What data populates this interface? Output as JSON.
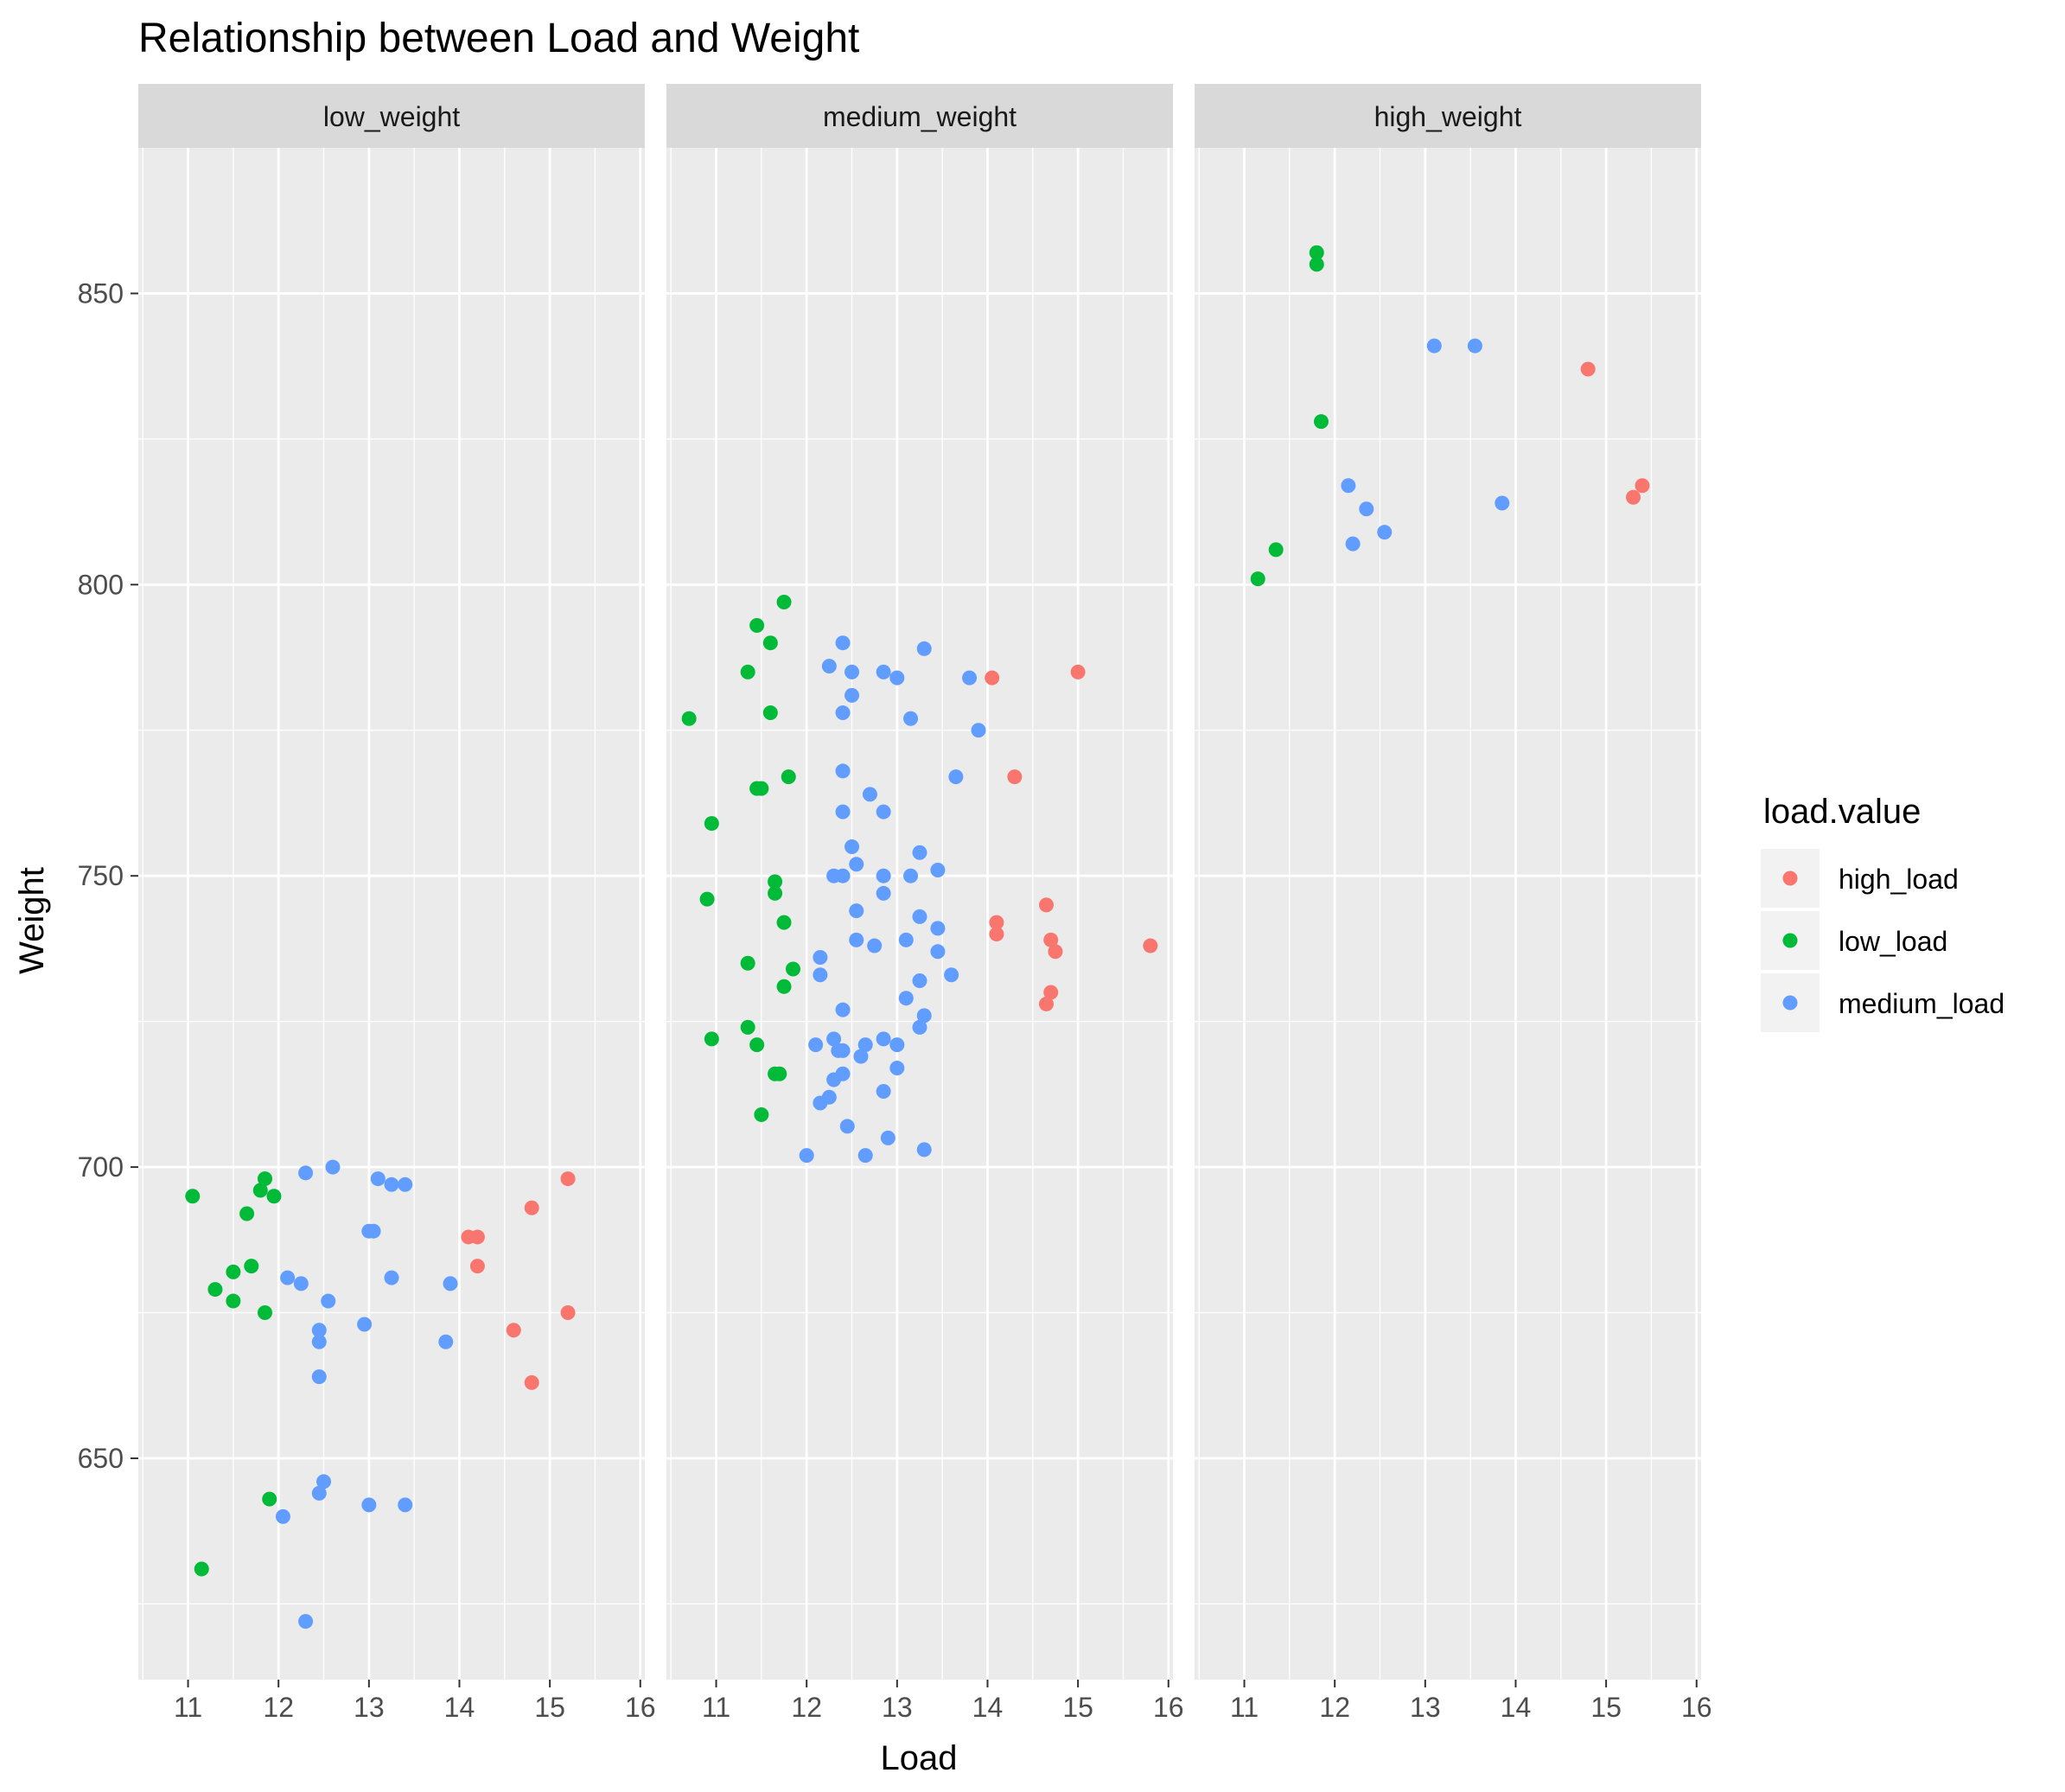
{
  "chart_data": {
    "type": "scatter",
    "title": "Relationship between Load and Weight",
    "xlabel": "Load",
    "ylabel": "Weight",
    "xlim": [
      10.45,
      16.05
    ],
    "ylim": [
      612,
      875
    ],
    "x_ticks": [
      11,
      12,
      13,
      14,
      15,
      16
    ],
    "y_ticks": [
      650,
      700,
      750,
      800,
      850
    ],
    "grid": true,
    "legend": {
      "title": "load.value",
      "position": "right",
      "entries": [
        {
          "name": "high_load",
          "color": "#F8766D"
        },
        {
          "name": "low_load",
          "color": "#00BA38"
        },
        {
          "name": "medium_load",
          "color": "#619CFF"
        }
      ]
    },
    "facets": [
      {
        "label": "low_weight",
        "series": [
          {
            "name": "high_load",
            "points": [
              [
                14.1,
                688
              ],
              [
                14.2,
                688
              ],
              [
                14.2,
                683
              ],
              [
                14.8,
                693
              ],
              [
                15.2,
                698
              ],
              [
                14.6,
                672
              ],
              [
                15.2,
                675
              ],
              [
                14.8,
                663
              ]
            ]
          },
          {
            "name": "low_load",
            "points": [
              [
                11.05,
                695
              ],
              [
                11.65,
                692
              ],
              [
                11.8,
                696
              ],
              [
                11.85,
                698
              ],
              [
                11.95,
                695
              ],
              [
                11.5,
                682
              ],
              [
                11.7,
                683
              ],
              [
                11.3,
                679
              ],
              [
                11.5,
                677
              ],
              [
                11.85,
                675
              ],
              [
                11.9,
                643
              ],
              [
                11.15,
                631
              ]
            ]
          },
          {
            "name": "medium_load",
            "points": [
              [
                12.3,
                699
              ],
              [
                12.6,
                700
              ],
              [
                13.1,
                698
              ],
              [
                13.25,
                697
              ],
              [
                13.4,
                697
              ],
              [
                13.0,
                689
              ],
              [
                13.05,
                689
              ],
              [
                12.1,
                681
              ],
              [
                12.25,
                680
              ],
              [
                13.25,
                681
              ],
              [
                13.9,
                680
              ],
              [
                12.55,
                677
              ],
              [
                12.95,
                673
              ],
              [
                12.45,
                672
              ],
              [
                12.45,
                670
              ],
              [
                13.85,
                670
              ],
              [
                12.45,
                664
              ],
              [
                12.5,
                646
              ],
              [
                12.45,
                644
              ],
              [
                12.05,
                640
              ],
              [
                13.0,
                642
              ],
              [
                13.4,
                642
              ],
              [
                12.3,
                622
              ]
            ]
          }
        ]
      },
      {
        "label": "medium_weight",
        "series": [
          {
            "name": "high_load",
            "points": [
              [
                14.05,
                784
              ],
              [
                15.0,
                785
              ],
              [
                14.3,
                767
              ],
              [
                14.65,
                745
              ],
              [
                14.1,
                742
              ],
              [
                14.1,
                740
              ],
              [
                14.7,
                739
              ],
              [
                14.75,
                737
              ],
              [
                15.8,
                738
              ],
              [
                14.7,
                730
              ],
              [
                14.65,
                728
              ]
            ]
          },
          {
            "name": "low_load",
            "points": [
              [
                11.75,
                797
              ],
              [
                11.45,
                793
              ],
              [
                11.6,
                790
              ],
              [
                11.35,
                785
              ],
              [
                10.7,
                777
              ],
              [
                11.6,
                778
              ],
              [
                11.8,
                767
              ],
              [
                11.45,
                765
              ],
              [
                11.5,
                765
              ],
              [
                10.95,
                759
              ],
              [
                11.65,
                749
              ],
              [
                11.65,
                747
              ],
              [
                10.9,
                746
              ],
              [
                11.75,
                742
              ],
              [
                11.85,
                734
              ],
              [
                11.35,
                735
              ],
              [
                11.75,
                731
              ],
              [
                11.35,
                724
              ],
              [
                10.95,
                722
              ],
              [
                11.45,
                721
              ],
              [
                11.7,
                716
              ],
              [
                11.65,
                716
              ],
              [
                11.5,
                709
              ]
            ]
          },
          {
            "name": "medium_load",
            "points": [
              [
                12.4,
                790
              ],
              [
                13.3,
                789
              ],
              [
                12.25,
                786
              ],
              [
                12.5,
                785
              ],
              [
                12.85,
                785
              ],
              [
                13.0,
                784
              ],
              [
                13.8,
                784
              ],
              [
                12.5,
                781
              ],
              [
                12.4,
                778
              ],
              [
                13.15,
                777
              ],
              [
                13.9,
                775
              ],
              [
                12.4,
                768
              ],
              [
                13.65,
                767
              ],
              [
                12.7,
                764
              ],
              [
                12.4,
                761
              ],
              [
                12.85,
                761
              ],
              [
                12.5,
                755
              ],
              [
                13.25,
                754
              ],
              [
                12.55,
                752
              ],
              [
                12.3,
                750
              ],
              [
                12.4,
                750
              ],
              [
                12.85,
                750
              ],
              [
                13.15,
                750
              ],
              [
                13.45,
                751
              ],
              [
                12.85,
                747
              ],
              [
                12.55,
                744
              ],
              [
                13.25,
                743
              ],
              [
                13.45,
                741
              ],
              [
                12.55,
                739
              ],
              [
                12.75,
                738
              ],
              [
                13.1,
                739
              ],
              [
                13.45,
                737
              ],
              [
                12.15,
                736
              ],
              [
                12.15,
                733
              ],
              [
                13.25,
                732
              ],
              [
                13.6,
                733
              ],
              [
                13.1,
                729
              ],
              [
                12.4,
                727
              ],
              [
                13.3,
                726
              ],
              [
                13.25,
                724
              ],
              [
                12.1,
                721
              ],
              [
                12.3,
                722
              ],
              [
                12.35,
                720
              ],
              [
                12.4,
                720
              ],
              [
                12.65,
                721
              ],
              [
                12.85,
                722
              ],
              [
                13.0,
                721
              ],
              [
                12.6,
                719
              ],
              [
                12.4,
                716
              ],
              [
                13.0,
                717
              ],
              [
                12.3,
                715
              ],
              [
                12.25,
                712
              ],
              [
                12.15,
                711
              ],
              [
                12.85,
                713
              ],
              [
                12.45,
                707
              ],
              [
                12.9,
                705
              ],
              [
                13.3,
                703
              ],
              [
                12.0,
                702
              ],
              [
                12.65,
                702
              ]
            ]
          }
        ]
      },
      {
        "label": "high_weight",
        "series": [
          {
            "name": "high_load",
            "points": [
              [
                14.8,
                837
              ],
              [
                15.4,
                817
              ],
              [
                15.3,
                815
              ]
            ]
          },
          {
            "name": "low_load",
            "points": [
              [
                11.8,
                857
              ],
              [
                11.8,
                855
              ],
              [
                11.85,
                828
              ],
              [
                11.35,
                806
              ],
              [
                11.15,
                801
              ]
            ]
          },
          {
            "name": "medium_load",
            "points": [
              [
                13.1,
                841
              ],
              [
                13.55,
                841
              ],
              [
                12.15,
                817
              ],
              [
                12.35,
                813
              ],
              [
                13.85,
                814
              ],
              [
                12.55,
                809
              ],
              [
                12.2,
                807
              ]
            ]
          }
        ]
      }
    ]
  }
}
